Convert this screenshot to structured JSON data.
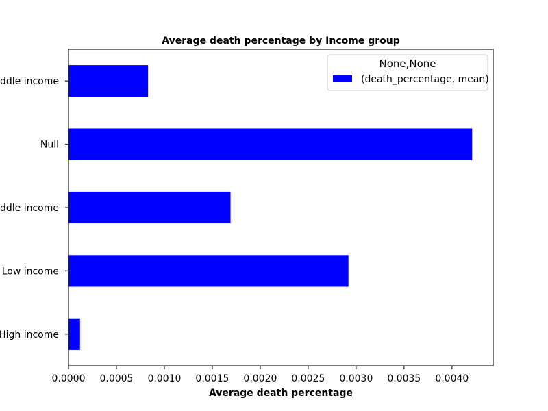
{
  "chart_data": {
    "type": "bar",
    "orientation": "horizontal",
    "title": "Average death percentage by Income group",
    "xlabel": "Average death percentage",
    "ylabel": "",
    "categories": [
      "High income",
      "Low income",
      "Lower middle income",
      "Null",
      "Upper middle income"
    ],
    "category_labels_visible": [
      "High income",
      "Low income",
      "iddle income",
      "Null",
      "iddle income"
    ],
    "series": [
      {
        "name": "(death_percentage, mean)",
        "color": "#0000ff",
        "values": [
          0.00012,
          0.00292,
          0.00169,
          0.00421,
          0.00083
        ]
      }
    ],
    "xlim": [
      0,
      0.00443
    ],
    "x_ticks": [
      "0.0000",
      "0.0005",
      "0.0010",
      "0.0015",
      "0.0020",
      "0.0025",
      "0.0030",
      "0.0035",
      "0.0040"
    ],
    "x_tick_values": [
      0,
      0.0005,
      0.001,
      0.0015,
      0.002,
      0.0025,
      0.003,
      0.0035,
      0.004
    ],
    "legend": {
      "title": "None,None",
      "placement": "top-right"
    },
    "grid": false
  }
}
